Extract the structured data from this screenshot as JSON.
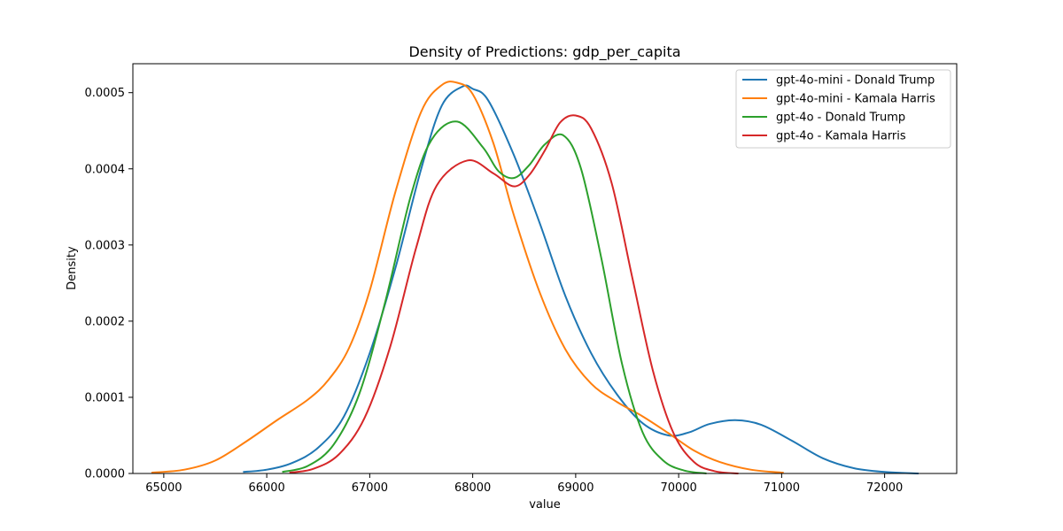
{
  "chart_data": {
    "type": "line",
    "title": "Density of Predictions: gdp_per_capita",
    "xlabel": "value",
    "ylabel": "Density",
    "xlim": [
      64700,
      72700
    ],
    "ylim": [
      0,
      0.000538
    ],
    "xticks": [
      65000,
      66000,
      67000,
      68000,
      69000,
      70000,
      71000,
      72000
    ],
    "xtick_labels": [
      "65000",
      "66000",
      "67000",
      "68000",
      "69000",
      "70000",
      "71000",
      "72000"
    ],
    "yticks": [
      0,
      0.0001,
      0.0002,
      0.0003,
      0.0004,
      0.0005
    ],
    "ytick_labels": [
      "0.0000",
      "0.0001",
      "0.0002",
      "0.0003",
      "0.0004",
      "0.0005"
    ],
    "grid": false,
    "legend_position": "top-right",
    "series": [
      {
        "name": "gpt-4o-mini - Donald Trump",
        "color": "#1f77b4",
        "x": [
          65770,
          66000,
          66250,
          66500,
          66750,
          67000,
          67250,
          67500,
          67700,
          67900,
          68000,
          68150,
          68400,
          68650,
          68900,
          69150,
          69400,
          69650,
          69900,
          70100,
          70300,
          70550,
          70800,
          71100,
          71400,
          71700,
          72000,
          72330
        ],
        "y": [
          2e-06,
          5e-06,
          1.4e-05,
          3.4e-05,
          7.5e-05,
          0.000158,
          0.00027,
          0.0004,
          0.000483,
          0.000508,
          0.000505,
          0.00049,
          0.000418,
          0.000329,
          0.000233,
          0.000158,
          0.000104,
          6.6e-05,
          5e-05,
          5.4e-05,
          6.5e-05,
          7e-05,
          6.4e-05,
          4.3e-05,
          2e-05,
          7e-06,
          2e-06,
          0
        ]
      },
      {
        "name": "gpt-4o-mini - Kamala Harris",
        "color": "#ff7f0e",
        "x": [
          64880,
          65200,
          65500,
          65800,
          66100,
          66400,
          66600,
          66800,
          67000,
          67250,
          67500,
          67700,
          67850,
          68000,
          68200,
          68400,
          68650,
          68900,
          69150,
          69400,
          69650,
          69900,
          70150,
          70400,
          70700,
          71020
        ],
        "y": [
          1e-06,
          5e-06,
          1.7e-05,
          4.2e-05,
          7e-05,
          9.7e-05,
          0.000123,
          0.000165,
          0.00024,
          0.00037,
          0.000475,
          0.00051,
          0.000513,
          0.000498,
          0.000434,
          0.000339,
          0.000238,
          0.000163,
          0.000118,
          9.4e-05,
          7.5e-05,
          5.3e-05,
          3e-05,
          1.5e-05,
          5e-06,
          1e-06
        ]
      },
      {
        "name": "gpt-4o - Donald Trump",
        "color": "#2ca02c",
        "x": [
          66150,
          66400,
          66650,
          66900,
          67150,
          67400,
          67600,
          67850,
          68100,
          68250,
          68400,
          68550,
          68700,
          68880,
          69050,
          69250,
          69450,
          69650,
          69850,
          70050,
          70270
        ],
        "y": [
          2e-06,
          1e-05,
          3.8e-05,
          0.000105,
          0.000225,
          0.000365,
          0.000438,
          0.000462,
          0.000428,
          0.000397,
          0.000388,
          0.000405,
          0.000432,
          0.000444,
          0.000401,
          0.000282,
          0.000144,
          5.4e-05,
          1.7e-05,
          4e-06,
          0
        ]
      },
      {
        "name": "gpt-4o - Kamala Harris",
        "color": "#d62728",
        "x": [
          66220,
          66450,
          66700,
          66950,
          67200,
          67450,
          67650,
          67950,
          68200,
          68400,
          68550,
          68700,
          68850,
          69000,
          69150,
          69350,
          69550,
          69750,
          69950,
          70150,
          70350,
          70580
        ],
        "y": [
          1e-06,
          6e-06,
          2.5e-05,
          7.3e-05,
          0.000167,
          0.000296,
          0.000378,
          0.000411,
          0.000394,
          0.000377,
          0.000392,
          0.000424,
          0.000461,
          0.00047,
          0.000453,
          0.000381,
          0.000257,
          0.000135,
          5.3e-05,
          1.5e-05,
          3e-06,
          0
        ]
      }
    ]
  }
}
